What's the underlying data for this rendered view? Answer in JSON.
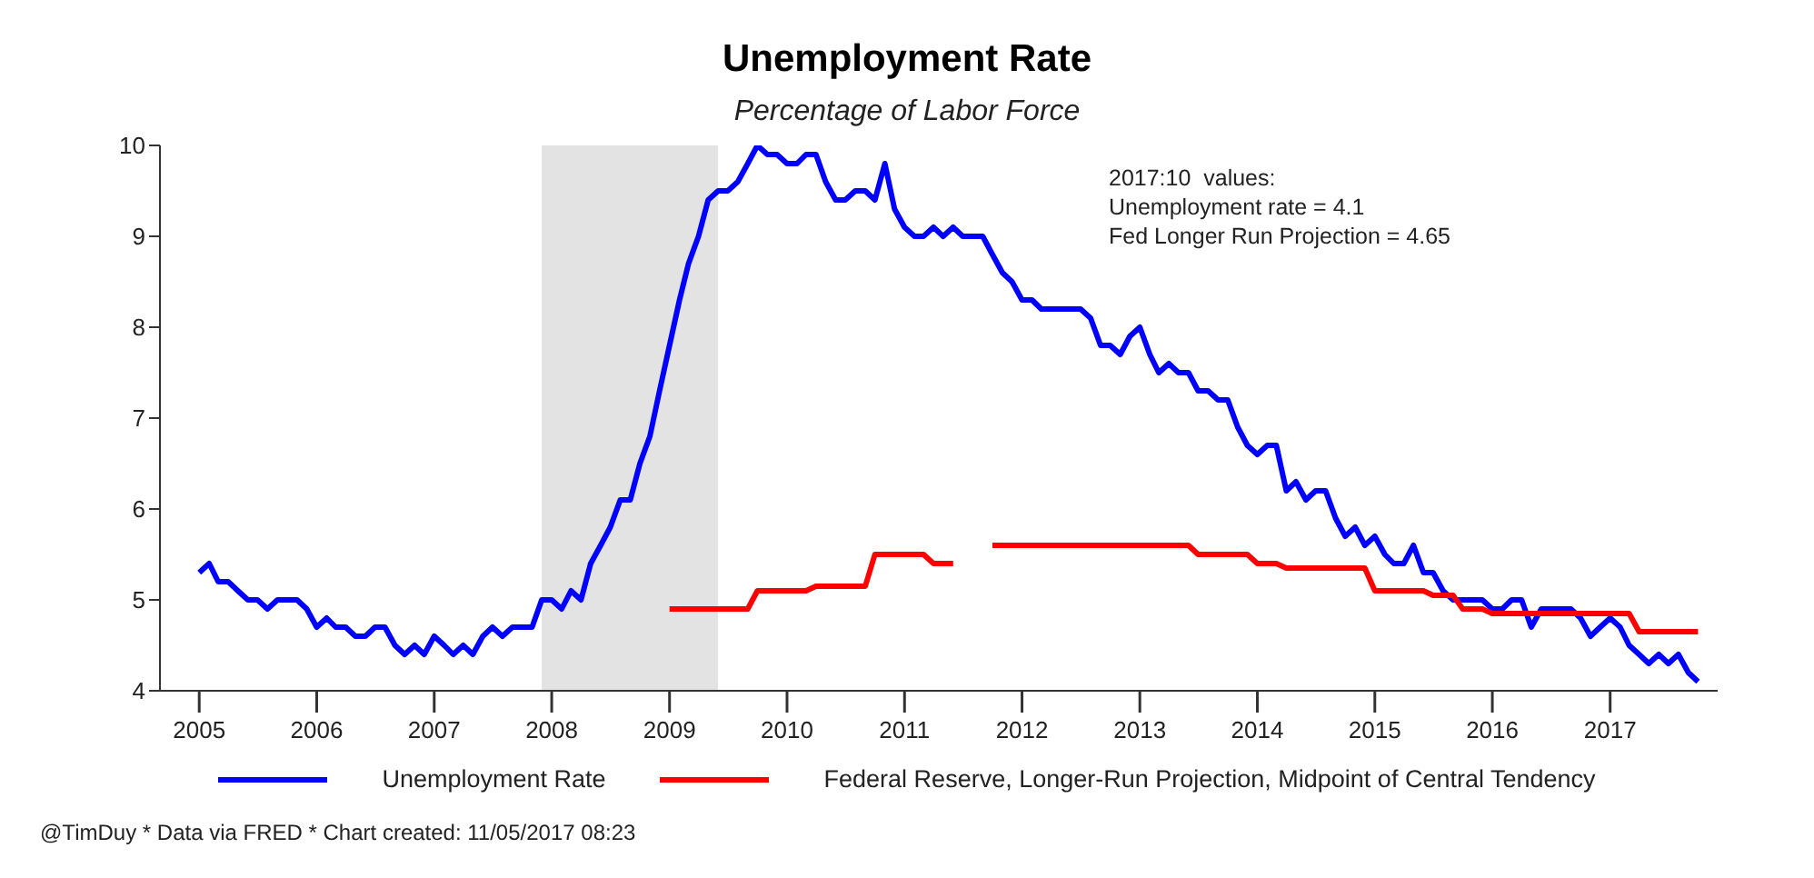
{
  "chart_data": {
    "type": "line",
    "title": "Unemployment Rate",
    "subtitle": "Percentage of Labor Force",
    "x": [
      "2005-01",
      "2005-02",
      "2005-03",
      "2005-04",
      "2005-05",
      "2005-06",
      "2005-07",
      "2005-08",
      "2005-09",
      "2005-10",
      "2005-11",
      "2005-12",
      "2006-01",
      "2006-02",
      "2006-03",
      "2006-04",
      "2006-05",
      "2006-06",
      "2006-07",
      "2006-08",
      "2006-09",
      "2006-10",
      "2006-11",
      "2006-12",
      "2007-01",
      "2007-02",
      "2007-03",
      "2007-04",
      "2007-05",
      "2007-06",
      "2007-07",
      "2007-08",
      "2007-09",
      "2007-10",
      "2007-11",
      "2007-12",
      "2008-01",
      "2008-02",
      "2008-03",
      "2008-04",
      "2008-05",
      "2008-06",
      "2008-07",
      "2008-08",
      "2008-09",
      "2008-10",
      "2008-11",
      "2008-12",
      "2009-01",
      "2009-02",
      "2009-03",
      "2009-04",
      "2009-05",
      "2009-06",
      "2009-07",
      "2009-08",
      "2009-09",
      "2009-10",
      "2009-11",
      "2009-12",
      "2010-01",
      "2010-02",
      "2010-03",
      "2010-04",
      "2010-05",
      "2010-06",
      "2010-07",
      "2010-08",
      "2010-09",
      "2010-10",
      "2010-11",
      "2010-12",
      "2011-01",
      "2011-02",
      "2011-03",
      "2011-04",
      "2011-05",
      "2011-06",
      "2011-07",
      "2011-08",
      "2011-09",
      "2011-10",
      "2011-11",
      "2011-12",
      "2012-01",
      "2012-02",
      "2012-03",
      "2012-04",
      "2012-05",
      "2012-06",
      "2012-07",
      "2012-08",
      "2012-09",
      "2012-10",
      "2012-11",
      "2012-12",
      "2013-01",
      "2013-02",
      "2013-03",
      "2013-04",
      "2013-05",
      "2013-06",
      "2013-07",
      "2013-08",
      "2013-09",
      "2013-10",
      "2013-11",
      "2013-12",
      "2014-01",
      "2014-02",
      "2014-03",
      "2014-04",
      "2014-05",
      "2014-06",
      "2014-07",
      "2014-08",
      "2014-09",
      "2014-10",
      "2014-11",
      "2014-12",
      "2015-01",
      "2015-02",
      "2015-03",
      "2015-04",
      "2015-05",
      "2015-06",
      "2015-07",
      "2015-08",
      "2015-09",
      "2015-10",
      "2015-11",
      "2015-12",
      "2016-01",
      "2016-02",
      "2016-03",
      "2016-04",
      "2016-05",
      "2016-06",
      "2016-07",
      "2016-08",
      "2016-09",
      "2016-10",
      "2016-11",
      "2016-12",
      "2017-01",
      "2017-02",
      "2017-03",
      "2017-04",
      "2017-05",
      "2017-06",
      "2017-07",
      "2017-08",
      "2017-09",
      "2017-10"
    ],
    "series": [
      {
        "name": "Unemployment Rate",
        "color": "#0000ff",
        "values": [
          5.3,
          5.4,
          5.2,
          5.2,
          5.1,
          5.0,
          5.0,
          4.9,
          5.0,
          5.0,
          5.0,
          4.9,
          4.7,
          4.8,
          4.7,
          4.7,
          4.6,
          4.6,
          4.7,
          4.7,
          4.5,
          4.4,
          4.5,
          4.4,
          4.6,
          4.5,
          4.4,
          4.5,
          4.4,
          4.6,
          4.7,
          4.6,
          4.7,
          4.7,
          4.7,
          5.0,
          5.0,
          4.9,
          5.1,
          5.0,
          5.4,
          5.6,
          5.8,
          6.1,
          6.1,
          6.5,
          6.8,
          7.3,
          7.8,
          8.3,
          8.7,
          9.0,
          9.4,
          9.5,
          9.5,
          9.6,
          9.8,
          10.0,
          9.9,
          9.9,
          9.8,
          9.8,
          9.9,
          9.9,
          9.6,
          9.4,
          9.4,
          9.5,
          9.5,
          9.4,
          9.8,
          9.3,
          9.1,
          9.0,
          9.0,
          9.1,
          9.0,
          9.1,
          9.0,
          9.0,
          9.0,
          8.8,
          8.6,
          8.5,
          8.3,
          8.3,
          8.2,
          8.2,
          8.2,
          8.2,
          8.2,
          8.1,
          7.8,
          7.8,
          7.7,
          7.9,
          8.0,
          7.7,
          7.5,
          7.6,
          7.5,
          7.5,
          7.3,
          7.3,
          7.2,
          7.2,
          6.9,
          6.7,
          6.6,
          6.7,
          6.7,
          6.2,
          6.3,
          6.1,
          6.2,
          6.2,
          5.9,
          5.7,
          5.8,
          5.6,
          5.7,
          5.5,
          5.4,
          5.4,
          5.6,
          5.3,
          5.3,
          5.1,
          5.0,
          5.0,
          5.0,
          5.0,
          4.9,
          4.9,
          5.0,
          5.0,
          4.7,
          4.9,
          4.9,
          4.9,
          4.9,
          4.8,
          4.6,
          4.7,
          4.8,
          4.7,
          4.5,
          4.4,
          4.3,
          4.4,
          4.3,
          4.4,
          4.2,
          4.1
        ]
      },
      {
        "name": "Federal Reserve, Longer-Run Projection, Midpoint of Central Tendency",
        "color": "#ff0000",
        "values": [
          null,
          null,
          null,
          null,
          null,
          null,
          null,
          null,
          null,
          null,
          null,
          null,
          null,
          null,
          null,
          null,
          null,
          null,
          null,
          null,
          null,
          null,
          null,
          null,
          null,
          null,
          null,
          null,
          null,
          null,
          null,
          null,
          null,
          null,
          null,
          null,
          null,
          null,
          null,
          null,
          null,
          null,
          null,
          null,
          null,
          null,
          null,
          null,
          4.9,
          4.9,
          4.9,
          4.9,
          4.9,
          4.9,
          4.9,
          4.9,
          4.9,
          5.1,
          5.1,
          5.1,
          5.1,
          5.1,
          5.1,
          5.15,
          5.15,
          5.15,
          5.15,
          5.15,
          5.15,
          5.5,
          5.5,
          5.5,
          5.5,
          5.5,
          5.5,
          5.4,
          5.4,
          5.4,
          null,
          null,
          null,
          5.6,
          5.6,
          5.6,
          5.6,
          5.6,
          5.6,
          5.6,
          5.6,
          5.6,
          5.6,
          5.6,
          5.6,
          5.6,
          5.6,
          5.6,
          5.6,
          5.6,
          5.6,
          5.6,
          5.6,
          5.6,
          5.5,
          5.5,
          5.5,
          5.5,
          5.5,
          5.5,
          5.4,
          5.4,
          5.4,
          5.35,
          5.35,
          5.35,
          5.35,
          5.35,
          5.35,
          5.35,
          5.35,
          5.35,
          5.1,
          5.1,
          5.1,
          5.1,
          5.1,
          5.1,
          5.05,
          5.05,
          5.05,
          4.9,
          4.9,
          4.9,
          4.85,
          4.85,
          4.85,
          4.85,
          4.85,
          4.85,
          4.85,
          4.85,
          4.85,
          4.85,
          4.85,
          4.85,
          4.85,
          4.85,
          4.85,
          4.65,
          4.65,
          4.65,
          4.65,
          4.65,
          4.65,
          4.65
        ]
      }
    ],
    "xlim": [
      "2004-09",
      "2017-12"
    ],
    "xticks": [
      "2005",
      "2006",
      "2007",
      "2008",
      "2009",
      "2010",
      "2011",
      "2012",
      "2013",
      "2014",
      "2015",
      "2016",
      "2017"
    ],
    "ylim": [
      4,
      10
    ],
    "yticks": [
      4,
      5,
      6,
      7,
      8,
      9,
      10
    ],
    "bands": [
      {
        "axis": "x",
        "from": "2007-12",
        "to": "2009-06",
        "color": "#e3e3e3"
      }
    ],
    "grid": false,
    "legend": "bottom",
    "marker": "none",
    "line_style": "solid",
    "annotations": [
      "2017:10  values:\nUnemployment rate = 4.1\nFed Longer Run Projection = 4.65",
      "@TimDuy * Data via FRED * Chart created: 11/05/2017 08:23"
    ]
  }
}
